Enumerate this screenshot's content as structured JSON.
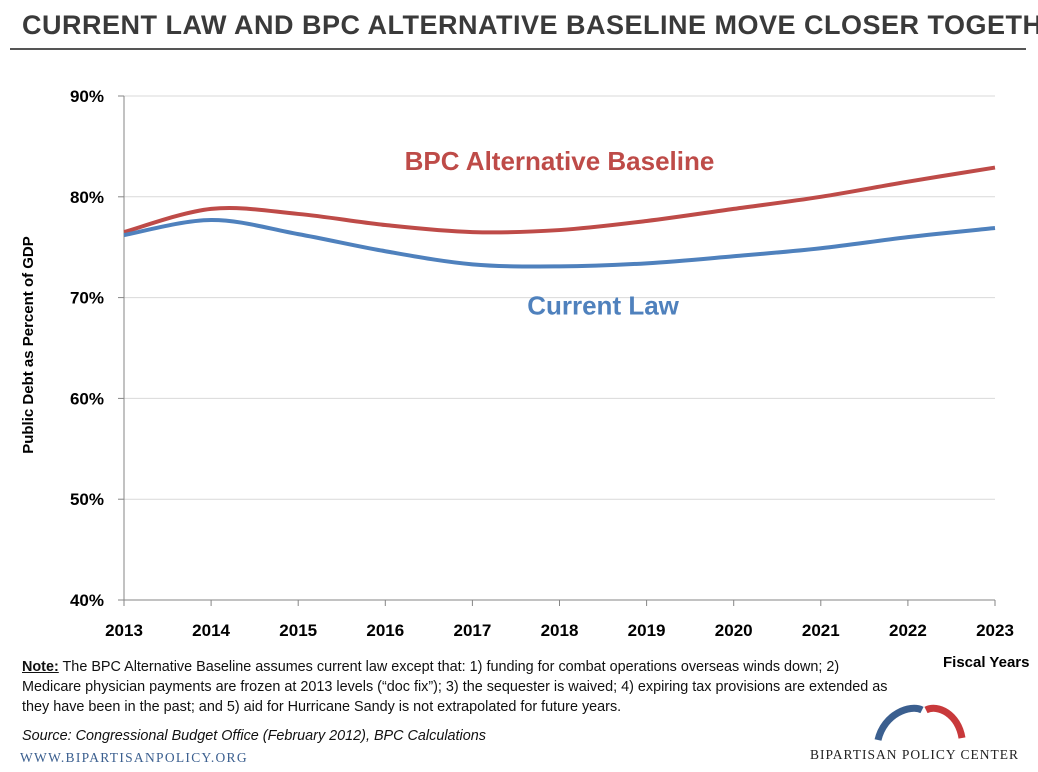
{
  "title": "CURRENT LAW AND BPC ALTERNATIVE BASELINE MOVE CLOSER TOGETHER",
  "chart_data": {
    "type": "line",
    "title": "CURRENT LAW AND BPC ALTERNATIVE BASELINE MOVE CLOSER TOGETHER",
    "x": [
      "2013",
      "2014",
      "2015",
      "2016",
      "2017",
      "2018",
      "2019",
      "2020",
      "2021",
      "2022",
      "2023"
    ],
    "xlabel": "Fiscal Years",
    "ylabel": "Public Debt as Percent of GDP",
    "ylim": [
      40,
      90
    ],
    "yticks": [
      40,
      50,
      60,
      70,
      80,
      90
    ],
    "ytick_labels": [
      "40%",
      "50%",
      "60%",
      "70%",
      "80%",
      "90%"
    ],
    "grid": true,
    "series": [
      {
        "name": "BPC Alternative Baseline",
        "color": "#be4b48",
        "values": [
          76.5,
          78.8,
          78.3,
          77.2,
          76.5,
          76.7,
          77.6,
          78.8,
          80.0,
          81.5,
          82.9
        ]
      },
      {
        "name": "Current Law",
        "color": "#4f81bd",
        "values": [
          76.2,
          77.7,
          76.3,
          74.6,
          73.3,
          73.1,
          73.4,
          74.1,
          74.9,
          76.0,
          76.9
        ]
      }
    ]
  },
  "note": {
    "label": "Note:",
    "text": " The BPC Alternative Baseline assumes current law except that: 1) funding for  combat operations overseas winds down; 2) Medicare physician payments are frozen at 2013 levels (“doc fix”); 3) the sequester is waived; 4) expiring tax provisions are extended  as they have been in the past; and 5) aid for Hurricane Sandy is not extrapolated for future years."
  },
  "source": "Source: Congressional Budget Office (February 2012), BPC Calculations",
  "website": "WWW.BIPARTISANPOLICY.ORG",
  "logo": {
    "text": "BIPARTISAN POLICY CENTER",
    "colors": {
      "blue": "#3b5f8f",
      "red": "#c8393b"
    }
  }
}
